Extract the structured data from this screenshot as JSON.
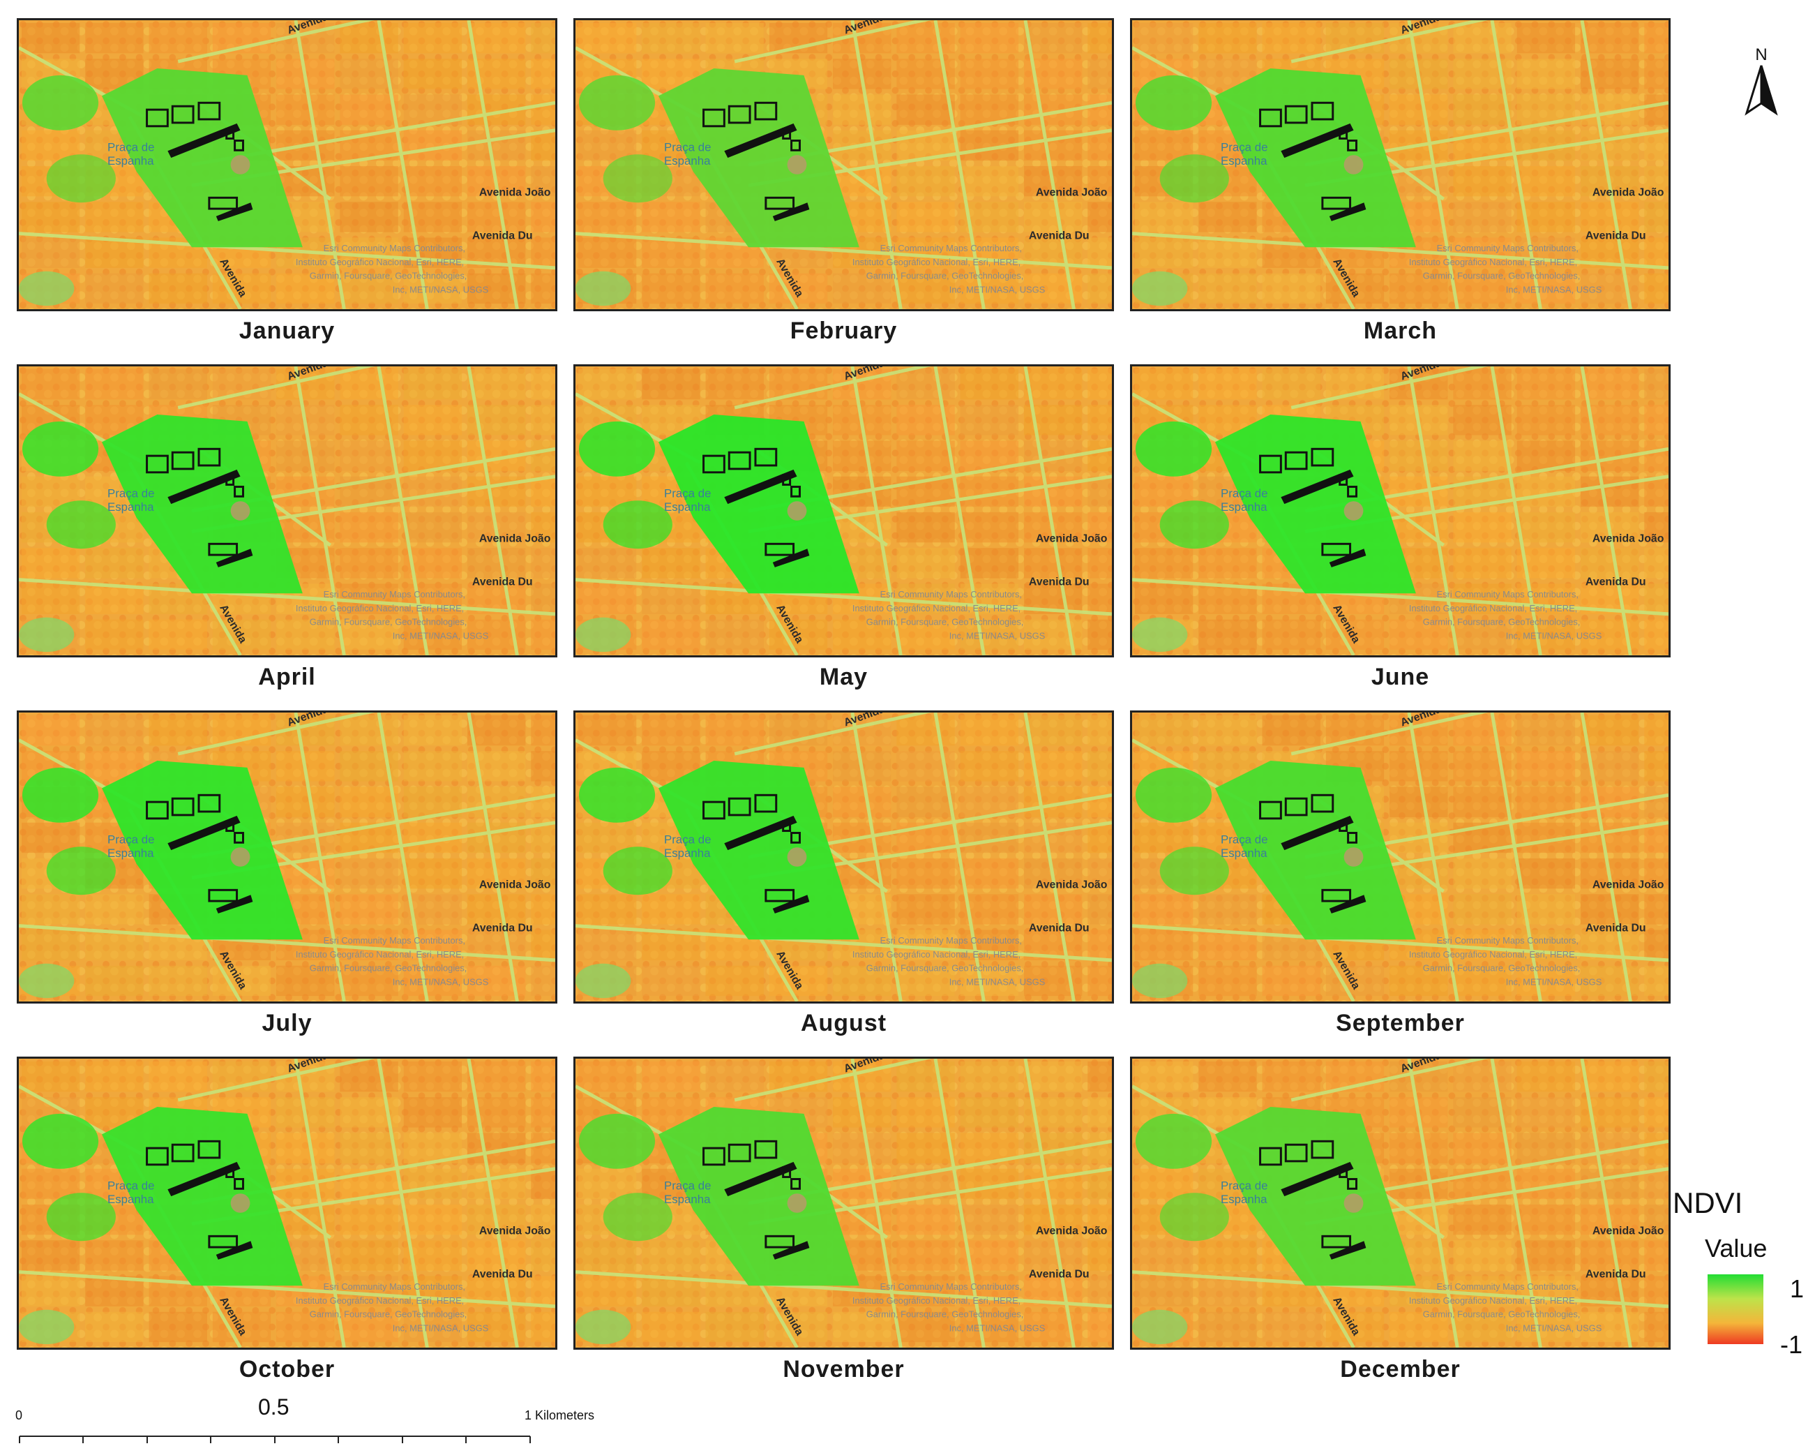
{
  "months": [
    "January",
    "February",
    "March",
    "April",
    "May",
    "June",
    "July",
    "August",
    "September",
    "October",
    "November",
    "December"
  ],
  "map_labels": {
    "avenida_top": "Avenida",
    "avenida_joao": "Avenida João",
    "avenida_du": "Avenida Du",
    "avenida_left": "Avenida",
    "praca_line1": "Praça de",
    "praca_line2": "Espanha"
  },
  "attribution": [
    "Esri Community Maps Contributors,",
    "Instituto Geográfico Nacional, Esri, HERE,",
    "Garmin, Foursquare, GeoTechnologies,",
    "Inc, METI/NASA, USGS"
  ],
  "legend": {
    "title": "NDVI",
    "subtitle": "Value",
    "max": "1",
    "min": "-1",
    "colors": [
      "#22dd33",
      "#bde34a",
      "#f4b53a",
      "#ee3a22"
    ]
  },
  "scale": {
    "start": "0",
    "mid": "0.5",
    "end": "1 Kilometers"
  },
  "north": "N"
}
